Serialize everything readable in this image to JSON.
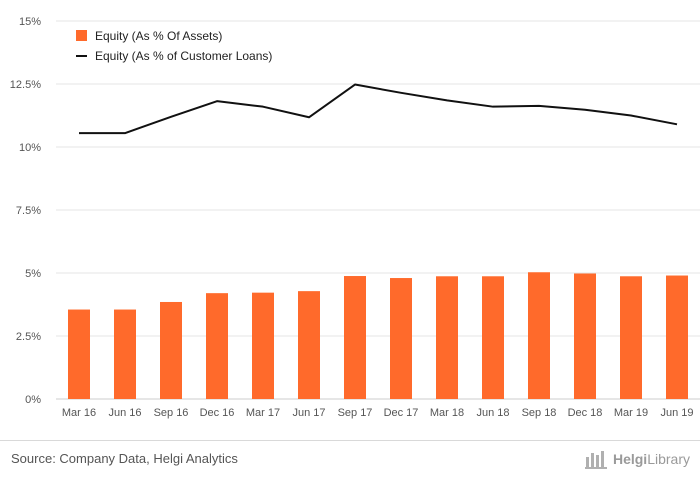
{
  "chart_data": {
    "type": "bar",
    "categories": [
      "Mar 16",
      "Jun 16",
      "Sep 16",
      "Dec 16",
      "Mar 17",
      "Jun 17",
      "Sep 17",
      "Dec 17",
      "Mar 18",
      "Jun 18",
      "Sep 18",
      "Dec 18",
      "Mar 19",
      "Jun 19"
    ],
    "series": [
      {
        "name": "Equity (As % Of Assets)",
        "type": "bar",
        "color": "#ff6a2b",
        "values": [
          3.55,
          3.55,
          3.85,
          4.2,
          4.22,
          4.28,
          4.88,
          4.8,
          4.87,
          4.87,
          5.03,
          4.98,
          4.87,
          4.9
        ]
      },
      {
        "name": "Equity (As % of Customer Loans)",
        "type": "line",
        "color": "#111111",
        "values": [
          10.55,
          10.55,
          11.2,
          11.82,
          11.6,
          11.18,
          12.48,
          12.15,
          11.85,
          11.6,
          11.63,
          11.48,
          11.25,
          10.9
        ]
      }
    ],
    "y_ticks": [
      "0%",
      "2.5%",
      "5%",
      "7.5%",
      "10%",
      "12.5%",
      "15%"
    ],
    "ylim": [
      0,
      15
    ],
    "grid": true,
    "legend_position": "top-left"
  },
  "footer": {
    "source": "Source: Company Data, Helgi Analytics",
    "brand_bold": "Helgi",
    "brand_rest": "Library"
  },
  "icons": {
    "brand": "helgi-library-logo-icon"
  }
}
